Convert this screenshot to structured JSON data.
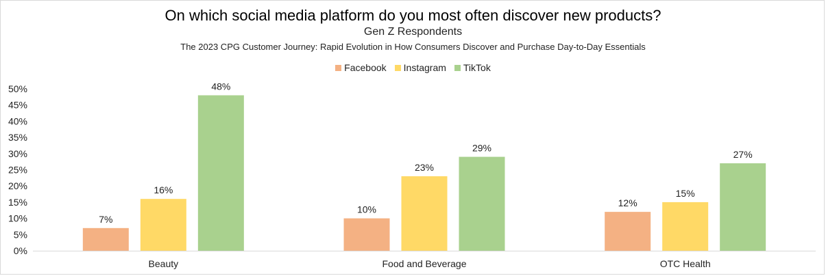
{
  "chart_data": {
    "type": "bar",
    "title": "On which social media platform do you most often discover new products?",
    "subtitle": "Gen Z Respondents",
    "source": "The 2023 CPG Customer Journey: Rapid Evolution in How Consumers Discover and Purchase Day-to-Day Essentials",
    "categories": [
      "Beauty",
      "Food and Beverage",
      "OTC Health"
    ],
    "series": [
      {
        "name": "Facebook",
        "color": "#f4b183",
        "values": [
          7,
          10,
          12
        ],
        "labels": [
          "7%",
          "10%",
          "12%"
        ]
      },
      {
        "name": "Instagram",
        "color": "#ffd966",
        "values": [
          16,
          23,
          15
        ],
        "labels": [
          "16%",
          "23%",
          "15%"
        ]
      },
      {
        "name": "TikTok",
        "color": "#a9d18e",
        "values": [
          48,
          29,
          27
        ],
        "labels": [
          "48%",
          "29%",
          "27%"
        ]
      }
    ],
    "ylim": [
      0,
      50
    ],
    "yticks": [
      "0%",
      "5%",
      "10%",
      "15%",
      "20%",
      "25%",
      "30%",
      "35%",
      "40%",
      "45%",
      "50%"
    ],
    "legend_position": "top-center",
    "grid": false
  }
}
